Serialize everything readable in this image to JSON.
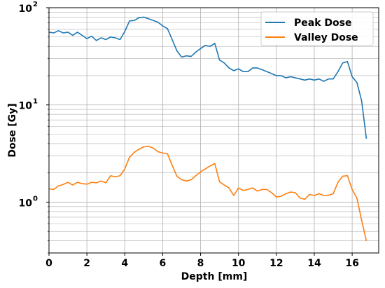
{
  "chart_data": {
    "type": "line",
    "xlabel": "Depth [mm]",
    "ylabel": "Dose [Gy]",
    "xlim": [
      0,
      17.4
    ],
    "ylim": [
      0.3,
      100
    ],
    "yscale": "log",
    "grid": "on (major and minor)",
    "legend_position": "top-right",
    "x_ticks": [
      "0",
      "2",
      "4",
      "6",
      "8",
      "10",
      "12",
      "14",
      "16"
    ],
    "y_ticks": [
      {
        "value": 1,
        "base": "10",
        "exp": "0"
      },
      {
        "value": 10,
        "base": "10",
        "exp": "1"
      },
      {
        "value": 100,
        "base": "10",
        "exp": "2"
      }
    ],
    "series": [
      {
        "name": "Peak Dose",
        "color": "#1f77b4",
        "points": [
          [
            0,
            56
          ],
          [
            0.25,
            55
          ],
          [
            0.5,
            58
          ],
          [
            0.75,
            55
          ],
          [
            1.0,
            56
          ],
          [
            1.25,
            52
          ],
          [
            1.5,
            56
          ],
          [
            1.75,
            52
          ],
          [
            2.0,
            48
          ],
          [
            2.25,
            51
          ],
          [
            2.5,
            46
          ],
          [
            2.75,
            49
          ],
          [
            3.0,
            47
          ],
          [
            3.25,
            50
          ],
          [
            3.5,
            49
          ],
          [
            3.75,
            47
          ],
          [
            4.0,
            57
          ],
          [
            4.25,
            73
          ],
          [
            4.5,
            74
          ],
          [
            4.75,
            79
          ],
          [
            5.0,
            80
          ],
          [
            5.25,
            77
          ],
          [
            5.5,
            74
          ],
          [
            5.75,
            71
          ],
          [
            6.0,
            65
          ],
          [
            6.25,
            61
          ],
          [
            6.5,
            47
          ],
          [
            6.75,
            36
          ],
          [
            7.0,
            31
          ],
          [
            7.25,
            32
          ],
          [
            7.5,
            31.5
          ],
          [
            7.75,
            35
          ],
          [
            8.0,
            38
          ],
          [
            8.25,
            41
          ],
          [
            8.5,
            40
          ],
          [
            8.75,
            43
          ],
          [
            9.0,
            29
          ],
          [
            9.25,
            27
          ],
          [
            9.5,
            24
          ],
          [
            9.75,
            22.5
          ],
          [
            10.0,
            23.5
          ],
          [
            10.25,
            22
          ],
          [
            10.5,
            22
          ],
          [
            10.75,
            24
          ],
          [
            11.0,
            24
          ],
          [
            11.25,
            23
          ],
          [
            11.5,
            22
          ],
          [
            11.75,
            21
          ],
          [
            12.0,
            20
          ],
          [
            12.25,
            20
          ],
          [
            12.5,
            19
          ],
          [
            12.75,
            19.5
          ],
          [
            13.0,
            19
          ],
          [
            13.25,
            18.5
          ],
          [
            13.5,
            18
          ],
          [
            13.75,
            18.5
          ],
          [
            14.0,
            18
          ],
          [
            14.25,
            18.5
          ],
          [
            14.5,
            17.5
          ],
          [
            14.75,
            18.5
          ],
          [
            15.0,
            18.5
          ],
          [
            15.25,
            22
          ],
          [
            15.5,
            27
          ],
          [
            15.75,
            28
          ],
          [
            16.0,
            19.5
          ],
          [
            16.25,
            17
          ],
          [
            16.5,
            11
          ],
          [
            16.75,
            4.5
          ]
        ]
      },
      {
        "name": "Valley Dose",
        "color": "#ff7f0e",
        "points": [
          [
            0,
            1.37
          ],
          [
            0.25,
            1.35
          ],
          [
            0.5,
            1.47
          ],
          [
            0.75,
            1.52
          ],
          [
            1.0,
            1.6
          ],
          [
            1.25,
            1.5
          ],
          [
            1.5,
            1.6
          ],
          [
            1.75,
            1.55
          ],
          [
            2.0,
            1.53
          ],
          [
            2.25,
            1.6
          ],
          [
            2.5,
            1.58
          ],
          [
            2.75,
            1.65
          ],
          [
            3.0,
            1.58
          ],
          [
            3.25,
            1.87
          ],
          [
            3.5,
            1.82
          ],
          [
            3.75,
            1.87
          ],
          [
            4.0,
            2.2
          ],
          [
            4.25,
            2.9
          ],
          [
            4.5,
            3.25
          ],
          [
            4.75,
            3.5
          ],
          [
            5.0,
            3.7
          ],
          [
            5.25,
            3.75
          ],
          [
            5.5,
            3.6
          ],
          [
            5.75,
            3.3
          ],
          [
            6.0,
            3.2
          ],
          [
            6.25,
            3.15
          ],
          [
            6.5,
            2.4
          ],
          [
            6.75,
            1.85
          ],
          [
            7.0,
            1.7
          ],
          [
            7.25,
            1.65
          ],
          [
            7.5,
            1.7
          ],
          [
            7.75,
            1.87
          ],
          [
            8.0,
            2.05
          ],
          [
            8.25,
            2.2
          ],
          [
            8.5,
            2.35
          ],
          [
            8.75,
            2.5
          ],
          [
            9.0,
            1.62
          ],
          [
            9.25,
            1.5
          ],
          [
            9.5,
            1.4
          ],
          [
            9.75,
            1.17
          ],
          [
            10.0,
            1.4
          ],
          [
            10.25,
            1.32
          ],
          [
            10.5,
            1.35
          ],
          [
            10.75,
            1.4
          ],
          [
            11.0,
            1.3
          ],
          [
            11.25,
            1.35
          ],
          [
            11.5,
            1.35
          ],
          [
            11.75,
            1.25
          ],
          [
            12.0,
            1.13
          ],
          [
            12.25,
            1.15
          ],
          [
            12.5,
            1.22
          ],
          [
            12.75,
            1.27
          ],
          [
            13.0,
            1.25
          ],
          [
            13.25,
            1.1
          ],
          [
            13.5,
            1.07
          ],
          [
            13.75,
            1.2
          ],
          [
            14.0,
            1.17
          ],
          [
            14.25,
            1.22
          ],
          [
            14.5,
            1.17
          ],
          [
            14.75,
            1.18
          ],
          [
            15.0,
            1.22
          ],
          [
            15.25,
            1.6
          ],
          [
            15.5,
            1.85
          ],
          [
            15.75,
            1.87
          ],
          [
            16.0,
            1.35
          ],
          [
            16.25,
            1.1
          ],
          [
            16.5,
            0.65
          ],
          [
            16.75,
            0.4
          ]
        ]
      }
    ]
  }
}
